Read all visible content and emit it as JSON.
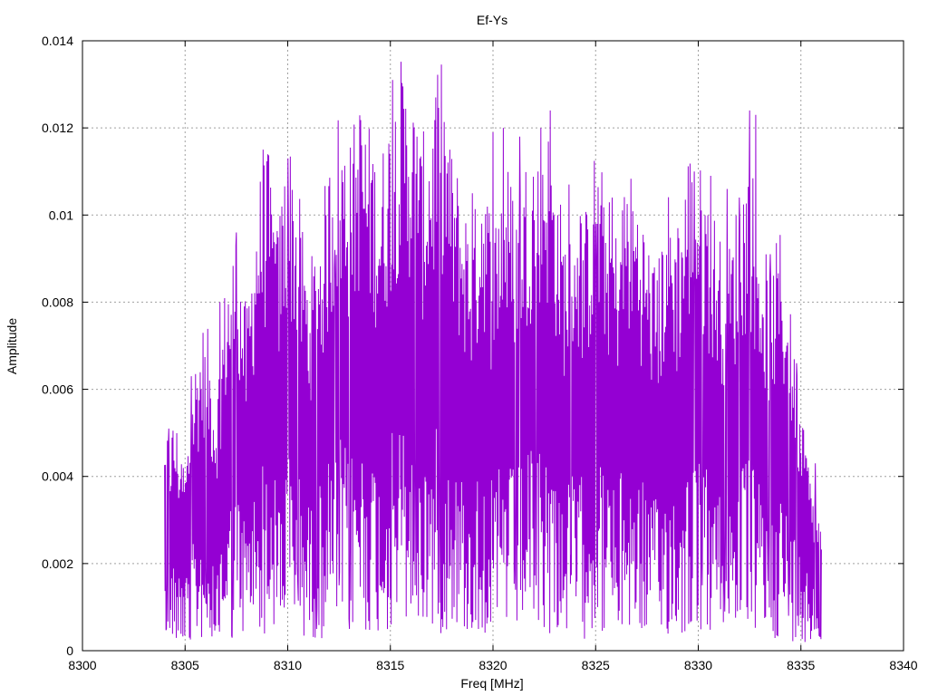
{
  "chart_data": {
    "type": "line",
    "title": "Ef-Ys",
    "xlabel": "Freq [MHz]",
    "ylabel": "Amplitude",
    "xlim": [
      8300,
      8340
    ],
    "ylim": [
      0,
      0.014
    ],
    "x_ticks": [
      8300,
      8305,
      8310,
      8315,
      8320,
      8325,
      8330,
      8335,
      8340
    ],
    "y_ticks": [
      0,
      0.002,
      0.004,
      0.006,
      0.008,
      0.01,
      0.012,
      0.014
    ],
    "x_tick_labels": [
      "8300",
      "8305",
      "8310",
      "8315",
      "8320",
      "8325",
      "8330",
      "8335",
      "8340"
    ],
    "y_tick_labels": [
      "0",
      "0.002",
      "0.004",
      "0.006",
      "0.008",
      "0.01",
      "0.012",
      "0.014"
    ],
    "grid": true,
    "legend": "none",
    "series": [
      {
        "color": "#9400d3",
        "x": [
          8304.0,
          8304.5,
          8305.0,
          8305.5,
          8306.0,
          8306.5,
          8307.0,
          8307.5,
          8308.0,
          8308.5,
          8309.0,
          8309.5,
          8310.0,
          8310.5,
          8311.0,
          8311.5,
          8312.0,
          8312.5,
          8313.0,
          8313.5,
          8314.0,
          8314.5,
          8315.0,
          8315.5,
          8316.0,
          8316.5,
          8317.0,
          8317.5,
          8318.0,
          8318.5,
          8319.0,
          8319.5,
          8320.0,
          8320.5,
          8321.0,
          8321.5,
          8322.0,
          8322.5,
          8323.0,
          8323.5,
          8324.0,
          8324.5,
          8325.0,
          8325.5,
          8326.0,
          8326.5,
          8327.0,
          8327.5,
          8328.0,
          8328.5,
          8329.0,
          8329.5,
          8330.0,
          8330.5,
          8331.0,
          8331.5,
          8332.0,
          8332.5,
          8333.0,
          8333.5,
          8334.0,
          8334.5,
          8335.0,
          8335.5,
          8336.0
        ],
        "y": [
          0.0025,
          0.0028,
          0.0022,
          0.0035,
          0.004,
          0.003,
          0.0045,
          0.005,
          0.004,
          0.0055,
          0.006,
          0.005,
          0.0062,
          0.0055,
          0.0045,
          0.005,
          0.0058,
          0.0065,
          0.006,
          0.0066,
          0.0062,
          0.0058,
          0.0065,
          0.007,
          0.0068,
          0.006,
          0.0065,
          0.007,
          0.006,
          0.0055,
          0.005,
          0.006,
          0.005,
          0.006,
          0.0055,
          0.0058,
          0.0062,
          0.0065,
          0.0058,
          0.005,
          0.0055,
          0.0052,
          0.006,
          0.0055,
          0.005,
          0.0058,
          0.0055,
          0.005,
          0.0045,
          0.0055,
          0.005,
          0.006,
          0.0058,
          0.0055,
          0.005,
          0.0048,
          0.0055,
          0.006,
          0.005,
          0.0045,
          0.005,
          0.004,
          0.003,
          0.002,
          0.0015
        ],
        "peaks": [
          [
            8304.2,
            0.0051
          ],
          [
            8305.3,
            0.0063
          ],
          [
            8306.7,
            0.008
          ],
          [
            8307.5,
            0.0096
          ],
          [
            8308.8,
            0.0115
          ],
          [
            8309.3,
            0.0096
          ],
          [
            8310.0,
            0.0113
          ],
          [
            8311.5,
            0.0083
          ],
          [
            8312.3,
            0.0092
          ],
          [
            8313.1,
            0.0096
          ],
          [
            8313.6,
            0.0116
          ],
          [
            8314.1,
            0.0108
          ],
          [
            8315.1,
            0.0131
          ],
          [
            8315.8,
            0.0116
          ],
          [
            8316.3,
            0.0118
          ],
          [
            8317.2,
            0.0127
          ],
          [
            8317.9,
            0.0115
          ],
          [
            8319.0,
            0.0105
          ],
          [
            8320.0,
            0.0119
          ],
          [
            8320.5,
            0.012
          ],
          [
            8321.3,
            0.0118
          ],
          [
            8322.2,
            0.011
          ],
          [
            8322.8,
            0.0124
          ],
          [
            8323.7,
            0.0107
          ],
          [
            8324.5,
            0.011
          ],
          [
            8325.0,
            0.0098
          ],
          [
            8325.8,
            0.0104
          ],
          [
            8327.0,
            0.009
          ],
          [
            8328.0,
            0.0085
          ],
          [
            8329.0,
            0.0097
          ],
          [
            8329.8,
            0.011
          ],
          [
            8330.6,
            0.0109
          ],
          [
            8331.4,
            0.0106
          ],
          [
            8332.0,
            0.0104
          ],
          [
            8332.5,
            0.0124
          ],
          [
            8332.8,
            0.0123
          ],
          [
            8333.5,
            0.0091
          ],
          [
            8334.3,
            0.007
          ],
          [
            8334.8,
            0.0066
          ],
          [
            8335.7,
            0.0043
          ]
        ],
        "troughs": [
          [
            8304.1,
            0.0005
          ],
          [
            8305.2,
            0.0003
          ],
          [
            8306.0,
            0.0011
          ],
          [
            8307.3,
            0.0003
          ],
          [
            8308.1,
            0.0018
          ],
          [
            8309.0,
            0.0013
          ],
          [
            8310.5,
            0.0015
          ],
          [
            8311.4,
            0.0005
          ],
          [
            8312.5,
            0.0015
          ],
          [
            8313.0,
            0.0005
          ],
          [
            8314.5,
            0.0015
          ],
          [
            8315.0,
            0.0012
          ],
          [
            8316.2,
            0.0015
          ],
          [
            8317.4,
            0.0011
          ],
          [
            8318.1,
            0.001
          ],
          [
            8318.7,
            0.002
          ],
          [
            8319.3,
            0.0005
          ],
          [
            8320.2,
            0.001
          ],
          [
            8321.1,
            0.0014
          ],
          [
            8322.1,
            0.0015
          ],
          [
            8323.4,
            0.0012
          ],
          [
            8323.8,
            0.0022
          ],
          [
            8324.5,
            0.0011
          ],
          [
            8325.1,
            0.001
          ],
          [
            8326.1,
            0.0007
          ],
          [
            8327.2,
            0.002
          ],
          [
            8328.2,
            0.0006
          ],
          [
            8328.9,
            0.0008
          ],
          [
            8330.2,
            0.0015
          ],
          [
            8331.3,
            0.0009
          ],
          [
            8332.6,
            0.0009
          ],
          [
            8333.4,
            0.0016
          ],
          [
            8334.4,
            0.0008
          ],
          [
            8335.2,
            0.0002
          ],
          [
            8335.9,
            0.0004
          ]
        ]
      }
    ]
  }
}
